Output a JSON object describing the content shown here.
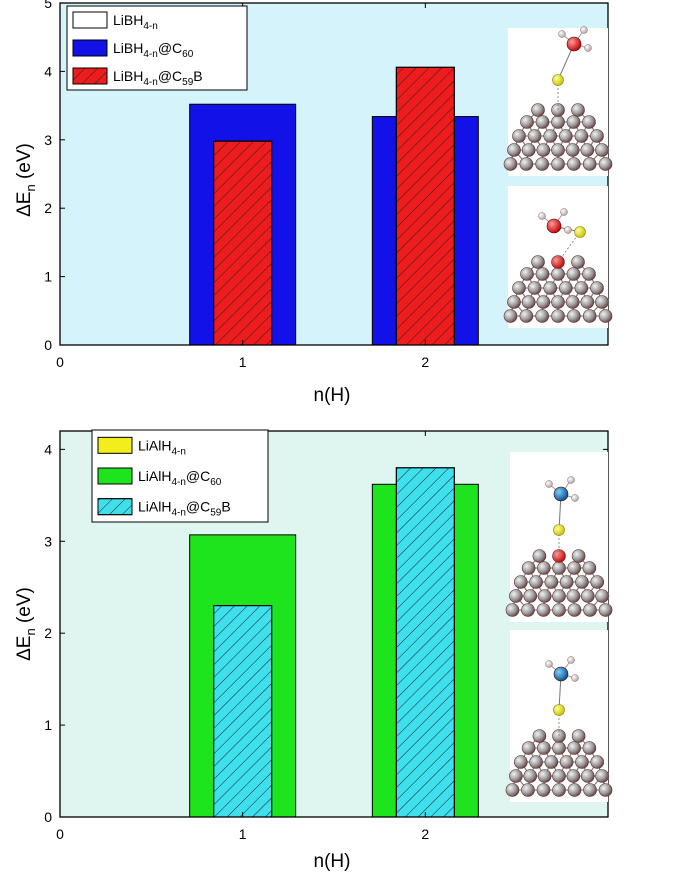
{
  "chart_data": [
    {
      "type": "bar",
      "categories": [
        "1",
        "2"
      ],
      "x_ticks": [
        "0",
        "1",
        "2"
      ],
      "xlabel": "n(H)",
      "ylabel": "ΔE",
      "ylabel_sub": "n",
      "ylabel_unit": "(eV)",
      "ylim": [
        0,
        5
      ],
      "y_ticks": [
        "0",
        "1",
        "2",
        "3",
        "4",
        "5"
      ],
      "background": "#d4f3fb",
      "series": [
        {
          "name": "LiBH",
          "name_sub": "4-n",
          "name_suffix": "",
          "name_tail_sub": "",
          "name_tail": "",
          "values": [
            0,
            0
          ],
          "color": "#ffffff",
          "hatch": false
        },
        {
          "name": "LiBH",
          "name_sub": "4-n",
          "name_suffix": "@C",
          "name_tail_sub": "60",
          "name_tail": "",
          "values": [
            3.52,
            3.34
          ],
          "color": "#1212e8",
          "hatch": false
        },
        {
          "name": "LiBH",
          "name_sub": "4-n",
          "name_suffix": "@C",
          "name_tail_sub": "59",
          "name_tail": "B",
          "values": [
            2.98,
            4.06
          ],
          "color": "#ee1c1c",
          "hatch": true
        }
      ]
    },
    {
      "type": "bar",
      "categories": [
        "1",
        "2"
      ],
      "x_ticks": [
        "0",
        "1",
        "2"
      ],
      "xlabel": "n(H)",
      "ylabel": "ΔE",
      "ylabel_sub": "n",
      "ylabel_unit": "(eV)",
      "ylim": [
        0,
        4.2
      ],
      "y_ticks": [
        "0",
        "1",
        "2",
        "3",
        "4"
      ],
      "background": "#dff5ef",
      "series": [
        {
          "name": "LiAlH",
          "name_sub": "4-n",
          "name_suffix": "",
          "name_tail_sub": "",
          "name_tail": "",
          "values": [
            0,
            0
          ],
          "color": "#f2ee1e",
          "hatch": false
        },
        {
          "name": "LiAlH",
          "name_sub": "4-n",
          "name_suffix": "@C",
          "name_tail_sub": "60",
          "name_tail": "",
          "values": [
            3.07,
            3.62
          ],
          "color": "#1ee41e",
          "hatch": false
        },
        {
          "name": "LiAlH",
          "name_sub": "4-n",
          "name_suffix": "@C",
          "name_tail_sub": "59",
          "name_tail": "B",
          "values": [
            2.3,
            3.8
          ],
          "color": "#3ee0ee",
          "hatch": true
        }
      ]
    }
  ]
}
